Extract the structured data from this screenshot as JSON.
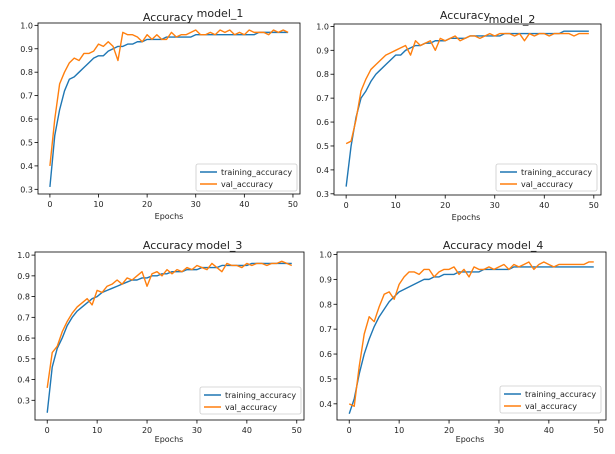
{
  "series_colors": {
    "training": "#1f77b4",
    "val": "#ff7f0e"
  },
  "chart_data": [
    {
      "type": "line",
      "title": "Accuracy",
      "model_label": "model_1",
      "xlabel": "Epochs",
      "ylabel": "",
      "xlim": [
        -2.45,
        51.45
      ],
      "ylim": [
        0.28,
        1.01
      ],
      "xticks": [
        0,
        10,
        20,
        30,
        40,
        50
      ],
      "yticks": [
        0.3,
        0.4,
        0.5,
        0.6,
        0.7,
        0.8,
        0.9,
        1.0
      ],
      "legend_position": "lower right",
      "grid": false,
      "x": [
        0,
        1,
        2,
        3,
        4,
        5,
        6,
        7,
        8,
        9,
        10,
        11,
        12,
        13,
        14,
        15,
        16,
        17,
        18,
        19,
        20,
        21,
        22,
        23,
        24,
        25,
        26,
        27,
        28,
        29,
        30,
        31,
        32,
        33,
        34,
        35,
        36,
        37,
        38,
        39,
        40,
        41,
        42,
        43,
        44,
        45,
        46,
        47,
        48,
        49
      ],
      "series": [
        {
          "name": "training_accuracy",
          "values": [
            0.31,
            0.53,
            0.64,
            0.72,
            0.77,
            0.78,
            0.8,
            0.82,
            0.84,
            0.86,
            0.87,
            0.87,
            0.89,
            0.9,
            0.91,
            0.91,
            0.92,
            0.92,
            0.93,
            0.93,
            0.94,
            0.94,
            0.94,
            0.94,
            0.95,
            0.95,
            0.95,
            0.95,
            0.95,
            0.95,
            0.96,
            0.96,
            0.96,
            0.96,
            0.96,
            0.96,
            0.96,
            0.96,
            0.96,
            0.96,
            0.96,
            0.96,
            0.96,
            0.97,
            0.97,
            0.97,
            0.97,
            0.97,
            0.97,
            0.97
          ]
        },
        {
          "name": "val_accuracy",
          "values": [
            0.4,
            0.6,
            0.75,
            0.8,
            0.84,
            0.86,
            0.85,
            0.88,
            0.88,
            0.89,
            0.92,
            0.91,
            0.93,
            0.91,
            0.85,
            0.97,
            0.96,
            0.96,
            0.95,
            0.93,
            0.96,
            0.94,
            0.96,
            0.94,
            0.94,
            0.97,
            0.95,
            0.96,
            0.96,
            0.97,
            0.98,
            0.96,
            0.96,
            0.97,
            0.96,
            0.98,
            0.97,
            0.98,
            0.96,
            0.97,
            0.96,
            0.98,
            0.97,
            0.97,
            0.97,
            0.96,
            0.98,
            0.97,
            0.98,
            0.97
          ]
        }
      ]
    },
    {
      "type": "line",
      "title": "Accuracy",
      "model_label": "model_2",
      "xlabel": "Epochs",
      "ylabel": "",
      "xlim": [
        -2.45,
        51.45
      ],
      "ylim": [
        0.295,
        1.01
      ],
      "xticks": [
        0,
        10,
        20,
        30,
        40,
        50
      ],
      "yticks": [
        0.3,
        0.4,
        0.5,
        0.6,
        0.7,
        0.8,
        0.9,
        1.0
      ],
      "legend_position": "lower right",
      "grid": false,
      "x": [
        0,
        1,
        2,
        3,
        4,
        5,
        6,
        7,
        8,
        9,
        10,
        11,
        12,
        13,
        14,
        15,
        16,
        17,
        18,
        19,
        20,
        21,
        22,
        23,
        24,
        25,
        26,
        27,
        28,
        29,
        30,
        31,
        32,
        33,
        34,
        35,
        36,
        37,
        38,
        39,
        40,
        41,
        42,
        43,
        44,
        45,
        46,
        47,
        48,
        49
      ],
      "series": [
        {
          "name": "training_accuracy",
          "values": [
            0.33,
            0.5,
            0.62,
            0.7,
            0.73,
            0.77,
            0.8,
            0.82,
            0.84,
            0.86,
            0.88,
            0.88,
            0.9,
            0.91,
            0.92,
            0.92,
            0.93,
            0.93,
            0.94,
            0.94,
            0.94,
            0.95,
            0.95,
            0.95,
            0.95,
            0.96,
            0.96,
            0.96,
            0.96,
            0.96,
            0.96,
            0.96,
            0.97,
            0.97,
            0.97,
            0.97,
            0.97,
            0.97,
            0.97,
            0.97,
            0.97,
            0.97,
            0.97,
            0.97,
            0.98,
            0.98,
            0.98,
            0.98,
            0.98,
            0.98
          ]
        },
        {
          "name": "val_accuracy",
          "values": [
            0.51,
            0.52,
            0.61,
            0.73,
            0.78,
            0.82,
            0.84,
            0.86,
            0.88,
            0.89,
            0.9,
            0.91,
            0.92,
            0.88,
            0.94,
            0.92,
            0.93,
            0.94,
            0.9,
            0.95,
            0.94,
            0.95,
            0.96,
            0.94,
            0.95,
            0.96,
            0.96,
            0.95,
            0.96,
            0.97,
            0.96,
            0.97,
            0.97,
            0.97,
            0.96,
            0.97,
            0.94,
            0.97,
            0.96,
            0.97,
            0.97,
            0.96,
            0.97,
            0.97,
            0.97,
            0.97,
            0.96,
            0.97,
            0.97,
            0.97
          ]
        }
      ]
    },
    {
      "type": "line",
      "title": "Accuracy",
      "model_label": "model_3",
      "xlabel": "Epochs",
      "ylabel": "",
      "xlim": [
        -2.45,
        51.45
      ],
      "ylim": [
        0.205,
        1.015
      ],
      "xticks": [
        0,
        10,
        20,
        30,
        40,
        50
      ],
      "yticks": [
        0.3,
        0.4,
        0.5,
        0.6,
        0.7,
        0.8,
        0.9,
        1.0
      ],
      "legend_position": "lower right",
      "grid": false,
      "x": [
        0,
        1,
        2,
        3,
        4,
        5,
        6,
        7,
        8,
        9,
        10,
        11,
        12,
        13,
        14,
        15,
        16,
        17,
        18,
        19,
        20,
        21,
        22,
        23,
        24,
        25,
        26,
        27,
        28,
        29,
        30,
        31,
        32,
        33,
        34,
        35,
        36,
        37,
        38,
        39,
        40,
        41,
        42,
        43,
        44,
        45,
        46,
        47,
        48,
        49
      ],
      "series": [
        {
          "name": "training_accuracy",
          "values": [
            0.24,
            0.46,
            0.55,
            0.6,
            0.66,
            0.7,
            0.73,
            0.75,
            0.77,
            0.79,
            0.8,
            0.82,
            0.83,
            0.84,
            0.85,
            0.86,
            0.87,
            0.88,
            0.88,
            0.89,
            0.89,
            0.9,
            0.9,
            0.91,
            0.91,
            0.92,
            0.92,
            0.92,
            0.93,
            0.93,
            0.93,
            0.94,
            0.94,
            0.94,
            0.94,
            0.95,
            0.95,
            0.95,
            0.95,
            0.95,
            0.95,
            0.96,
            0.96,
            0.96,
            0.96,
            0.96,
            0.96,
            0.96,
            0.96,
            0.96
          ]
        },
        {
          "name": "val_accuracy",
          "values": [
            0.36,
            0.53,
            0.56,
            0.63,
            0.68,
            0.72,
            0.75,
            0.77,
            0.79,
            0.76,
            0.83,
            0.82,
            0.85,
            0.86,
            0.88,
            0.86,
            0.89,
            0.88,
            0.9,
            0.92,
            0.85,
            0.91,
            0.92,
            0.9,
            0.93,
            0.91,
            0.93,
            0.92,
            0.94,
            0.93,
            0.95,
            0.94,
            0.93,
            0.96,
            0.94,
            0.92,
            0.96,
            0.95,
            0.95,
            0.94,
            0.96,
            0.95,
            0.96,
            0.96,
            0.95,
            0.96,
            0.96,
            0.97,
            0.96,
            0.95
          ]
        }
      ]
    },
    {
      "type": "line",
      "title": "Accuracy",
      "model_label": "model_4",
      "xlabel": "Epochs",
      "ylabel": "",
      "xlim": [
        -2.45,
        51.45
      ],
      "ylim": [
        0.335,
        1.01
      ],
      "xticks": [
        0,
        10,
        20,
        30,
        40,
        50
      ],
      "yticks": [
        0.4,
        0.5,
        0.6,
        0.7,
        0.8,
        0.9,
        1.0
      ],
      "legend_position": "lower right",
      "grid": false,
      "x": [
        0,
        1,
        2,
        3,
        4,
        5,
        6,
        7,
        8,
        9,
        10,
        11,
        12,
        13,
        14,
        15,
        16,
        17,
        18,
        19,
        20,
        21,
        22,
        23,
        24,
        25,
        26,
        27,
        28,
        29,
        30,
        31,
        32,
        33,
        34,
        35,
        36,
        37,
        38,
        39,
        40,
        41,
        42,
        43,
        44,
        45,
        46,
        47,
        48,
        49
      ],
      "series": [
        {
          "name": "training_accuracy",
          "values": [
            0.36,
            0.42,
            0.52,
            0.6,
            0.66,
            0.71,
            0.75,
            0.78,
            0.81,
            0.83,
            0.85,
            0.86,
            0.87,
            0.88,
            0.89,
            0.9,
            0.9,
            0.91,
            0.91,
            0.92,
            0.92,
            0.92,
            0.93,
            0.93,
            0.93,
            0.93,
            0.93,
            0.94,
            0.94,
            0.94,
            0.94,
            0.94,
            0.94,
            0.95,
            0.95,
            0.95,
            0.95,
            0.95,
            0.95,
            0.95,
            0.95,
            0.95,
            0.95,
            0.95,
            0.95,
            0.95,
            0.95,
            0.95,
            0.95,
            0.95
          ]
        },
        {
          "name": "val_accuracy",
          "values": [
            0.4,
            0.39,
            0.55,
            0.68,
            0.75,
            0.73,
            0.79,
            0.84,
            0.85,
            0.82,
            0.88,
            0.91,
            0.93,
            0.93,
            0.92,
            0.94,
            0.94,
            0.91,
            0.93,
            0.94,
            0.94,
            0.95,
            0.92,
            0.94,
            0.91,
            0.95,
            0.94,
            0.94,
            0.95,
            0.94,
            0.95,
            0.96,
            0.94,
            0.96,
            0.95,
            0.96,
            0.97,
            0.94,
            0.96,
            0.97,
            0.96,
            0.95,
            0.96,
            0.96,
            0.96,
            0.96,
            0.96,
            0.96,
            0.97,
            0.97
          ]
        }
      ]
    }
  ]
}
